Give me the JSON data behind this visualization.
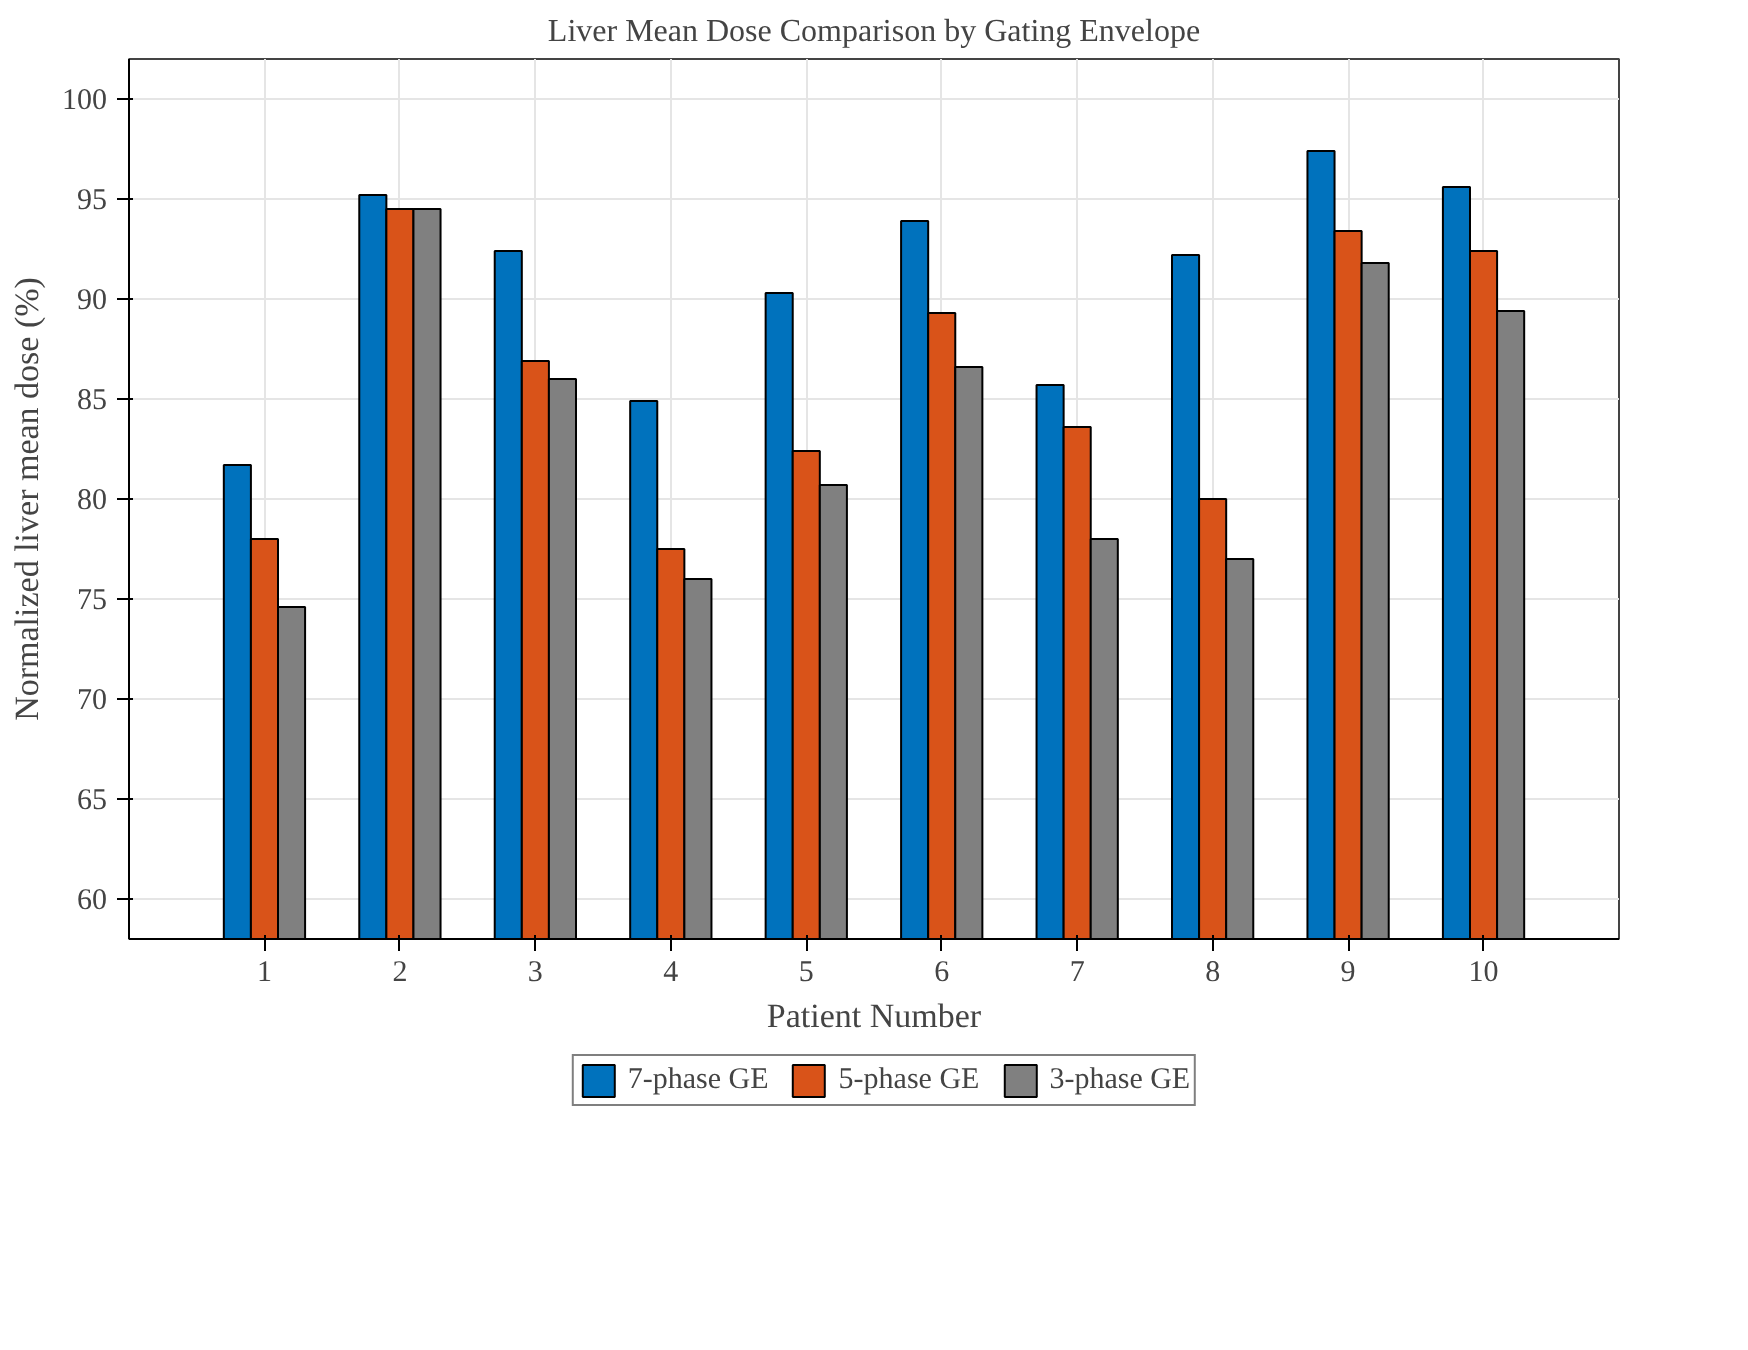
{
  "chart_data": {
    "type": "bar",
    "title": "Liver Mean Dose Comparison by Gating Envelope",
    "xlabel": "Patient Number",
    "ylabel": "Normalized liver mean dose (%)",
    "x": [
      1,
      2,
      3,
      4,
      5,
      6,
      7,
      8,
      9,
      10
    ],
    "xlim": [
      0,
      11
    ],
    "xticks": [
      1,
      2,
      3,
      4,
      5,
      6,
      7,
      8,
      9,
      10
    ],
    "ylim": [
      58,
      102
    ],
    "yticks": [
      60,
      65,
      70,
      75,
      80,
      85,
      90,
      95,
      100
    ],
    "grid": true,
    "legend": "bottom",
    "series": [
      {
        "name": "7-phase GE",
        "color": "#0072bd",
        "values": [
          81.7,
          95.2,
          92.4,
          84.9,
          90.3,
          93.9,
          85.7,
          92.2,
          97.4,
          95.6
        ]
      },
      {
        "name": "5-phase GE",
        "color": "#d95319",
        "values": [
          78.0,
          94.5,
          86.9,
          77.5,
          82.4,
          89.3,
          83.6,
          80.0,
          93.4,
          92.4
        ]
      },
      {
        "name": "3-phase GE",
        "color": "#808080",
        "values": [
          74.6,
          94.5,
          86.0,
          76.0,
          80.7,
          86.6,
          78.0,
          77.0,
          91.8,
          89.4
        ]
      }
    ]
  }
}
